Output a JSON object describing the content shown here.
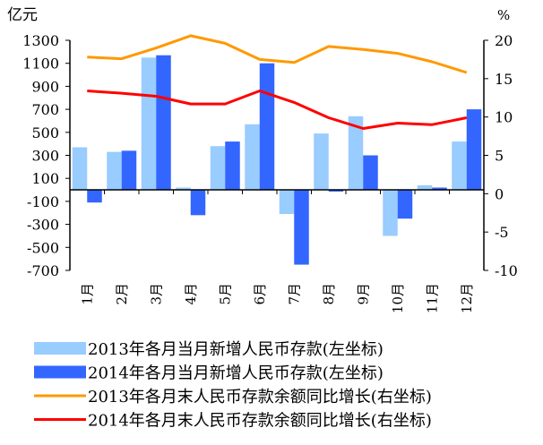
{
  "chart_data": {
    "type": "bar",
    "title": "",
    "left_unit": "亿元",
    "right_unit": "%",
    "categories": [
      "1月",
      "2月",
      "3月",
      "4月",
      "5月",
      "6月",
      "7月",
      "8月",
      "9月",
      "10月",
      "11月",
      "12月"
    ],
    "ylim_left": [
      -700,
      1300
    ],
    "yticks_left": [
      1300,
      1100,
      900,
      700,
      500,
      300,
      100,
      -100,
      -300,
      -500,
      -700
    ],
    "ylim_right": [
      -10,
      20
    ],
    "yticks_right": [
      20,
      15,
      10,
      5,
      0,
      -5,
      -10
    ],
    "bar_series": [
      {
        "name": "2013年各月当月新增人民币存款(左坐标)",
        "axis": "left",
        "color": "#99ccff",
        "values": [
          370,
          330,
          1150,
          20,
          380,
          570,
          -210,
          490,
          640,
          -400,
          40,
          420
        ]
      },
      {
        "name": "2014年各月当月新增人民币存款(左坐标)",
        "axis": "left",
        "color": "#3366ff",
        "values": [
          -110,
          340,
          1170,
          -220,
          420,
          1100,
          -650,
          -15,
          300,
          -250,
          20,
          700
        ]
      }
    ],
    "line_series": [
      {
        "name": "2013年各月末人民币存款余额同比增长(右坐标)",
        "axis": "right",
        "color": "#ff9900",
        "values": [
          17.8,
          17.6,
          19.0,
          20.6,
          19.6,
          17.5,
          17.1,
          19.2,
          18.8,
          18.3,
          17.2,
          15.8
        ]
      },
      {
        "name": "2014年各月末人民币存款余额同比增长(右坐标)",
        "axis": "right",
        "color": "#ff0000",
        "values": [
          13.4,
          13.1,
          12.7,
          11.7,
          11.7,
          13.4,
          11.9,
          9.9,
          8.5,
          9.2,
          9.0,
          9.9
        ]
      }
    ],
    "grid": false,
    "legend_position": "bottom"
  }
}
